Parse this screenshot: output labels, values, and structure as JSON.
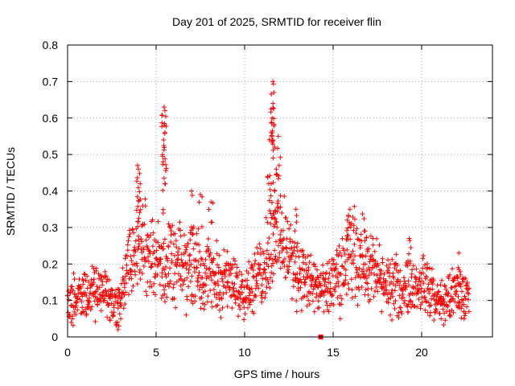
{
  "chart_data": {
    "type": "scatter",
    "title": "Day 201 of 2025, SRMTID for receiver flin",
    "xlabel": "GPS time / hours",
    "ylabel": "SRMTID / TECUs",
    "xlim": [
      0,
      24
    ],
    "ylim": [
      0,
      0.8
    ],
    "x_ticks": [
      0,
      5,
      10,
      15,
      20
    ],
    "x_tick_labels": [
      "0",
      "5",
      "10",
      "15",
      "20"
    ],
    "y_ticks": [
      0,
      0.1,
      0.2,
      0.3,
      0.4,
      0.5,
      0.6,
      0.7,
      0.8
    ],
    "y_tick_labels": [
      "0",
      "0.1",
      "0.2",
      "0.3",
      "0.4",
      "0.5",
      "0.6",
      "0.7",
      "0.8"
    ],
    "grid": true,
    "marker": "+",
    "point_color": "#ff0000",
    "x_extent_hours": [
      0,
      22.7
    ],
    "baseline_envelope": [
      {
        "x": 0.0,
        "y": 0.1
      },
      {
        "x": 1.0,
        "y": 0.11
      },
      {
        "x": 2.0,
        "y": 0.13
      },
      {
        "x": 2.8,
        "y": 0.08
      },
      {
        "x": 3.5,
        "y": 0.2
      },
      {
        "x": 4.0,
        "y": 0.26
      },
      {
        "x": 5.0,
        "y": 0.21
      },
      {
        "x": 6.0,
        "y": 0.19
      },
      {
        "x": 7.0,
        "y": 0.2
      },
      {
        "x": 8.0,
        "y": 0.17
      },
      {
        "x": 9.0,
        "y": 0.15
      },
      {
        "x": 10.0,
        "y": 0.13
      },
      {
        "x": 11.0,
        "y": 0.17
      },
      {
        "x": 11.7,
        "y": 0.3
      },
      {
        "x": 12.5,
        "y": 0.22
      },
      {
        "x": 13.5,
        "y": 0.15
      },
      {
        "x": 14.5,
        "y": 0.12
      },
      {
        "x": 15.5,
        "y": 0.17
      },
      {
        "x": 16.0,
        "y": 0.24
      },
      {
        "x": 17.0,
        "y": 0.2
      },
      {
        "x": 18.0,
        "y": 0.14
      },
      {
        "x": 19.0,
        "y": 0.13
      },
      {
        "x": 20.0,
        "y": 0.15
      },
      {
        "x": 21.0,
        "y": 0.09
      },
      {
        "x": 22.0,
        "y": 0.12
      },
      {
        "x": 22.7,
        "y": 0.11
      }
    ],
    "peak_points": [
      {
        "x": 3.95,
        "y": 0.47
      },
      {
        "x": 4.0,
        "y": 0.46
      },
      {
        "x": 4.1,
        "y": 0.42
      },
      {
        "x": 5.45,
        "y": 0.63
      },
      {
        "x": 5.5,
        "y": 0.62
      },
      {
        "x": 5.45,
        "y": 0.58
      },
      {
        "x": 5.5,
        "y": 0.56
      },
      {
        "x": 5.42,
        "y": 0.54
      },
      {
        "x": 5.5,
        "y": 0.42
      },
      {
        "x": 7.0,
        "y": 0.4
      },
      {
        "x": 7.5,
        "y": 0.39
      },
      {
        "x": 8.1,
        "y": 0.37
      },
      {
        "x": 11.6,
        "y": 0.7
      },
      {
        "x": 11.65,
        "y": 0.67
      },
      {
        "x": 11.6,
        "y": 0.64
      },
      {
        "x": 11.55,
        "y": 0.6
      },
      {
        "x": 11.5,
        "y": 0.56
      },
      {
        "x": 11.6,
        "y": 0.54
      },
      {
        "x": 11.7,
        "y": 0.52
      },
      {
        "x": 11.9,
        "y": 0.55
      },
      {
        "x": 11.95,
        "y": 0.47
      },
      {
        "x": 11.3,
        "y": 0.44
      },
      {
        "x": 11.5,
        "y": 0.42
      },
      {
        "x": 11.7,
        "y": 0.4
      },
      {
        "x": 12.9,
        "y": 0.35
      },
      {
        "x": 15.8,
        "y": 0.32
      },
      {
        "x": 16.8,
        "y": 0.29
      },
      {
        "x": 19.3,
        "y": 0.27
      },
      {
        "x": 22.1,
        "y": 0.23
      }
    ],
    "low_points": [
      {
        "x": 2.85,
        "y": 0.02
      },
      {
        "x": 2.9,
        "y": 0.03
      },
      {
        "x": 3.0,
        "y": 0.05
      },
      {
        "x": 0.2,
        "y": 0.04
      },
      {
        "x": 6.7,
        "y": 0.06
      },
      {
        "x": 15.4,
        "y": 0.05
      },
      {
        "x": 21.1,
        "y": 0.05
      },
      {
        "x": 22.4,
        "y": 0.05
      }
    ],
    "marked_point": {
      "x": 14.3,
      "y": 0.0
    }
  }
}
